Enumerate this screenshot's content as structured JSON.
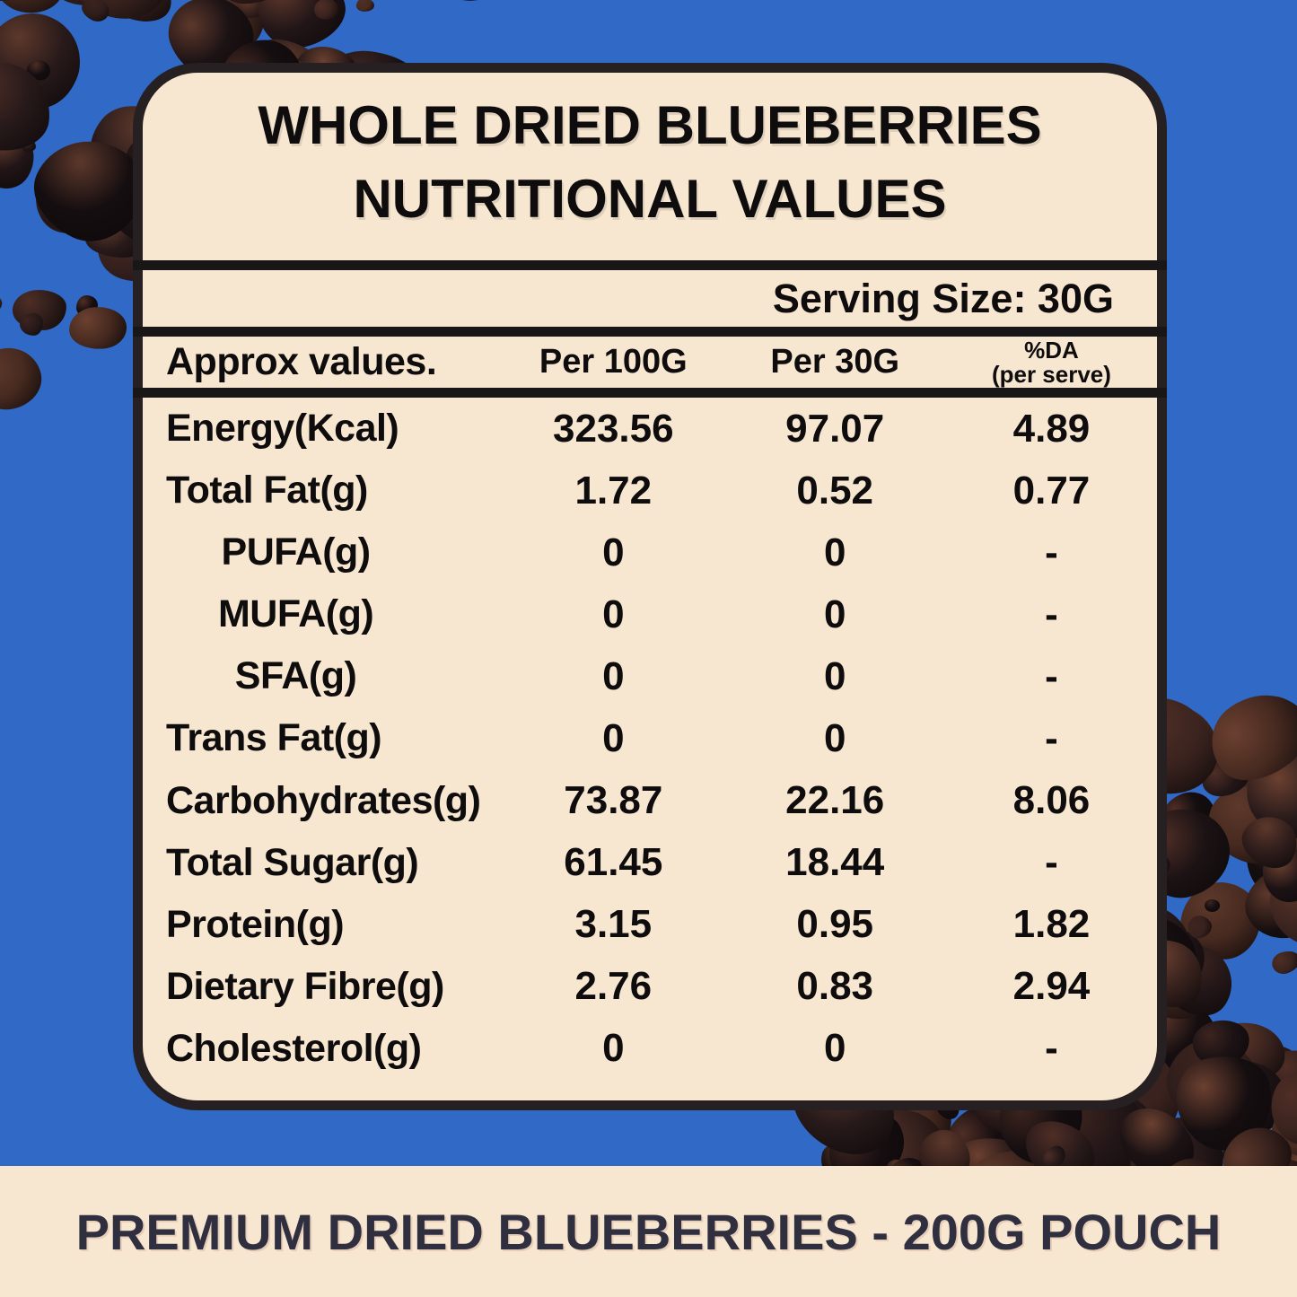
{
  "header": {
    "title_line1": "WHOLE DRIED BLUEBERRIES",
    "title_line2": "NUTRITIONAL VALUES",
    "serving_size": "Serving Size: 30G"
  },
  "table": {
    "col_label": "Approx values.",
    "col_per100": "Per 100G",
    "col_per30": "Per 30G",
    "col_da_line1": "%DA",
    "col_da_line2": "(per serve)",
    "rows": [
      {
        "label": "Energy(Kcal)",
        "per100": "323.56",
        "per30": "97.07",
        "da": "4.89",
        "indent": false
      },
      {
        "label": "Total Fat(g)",
        "per100": "1.72",
        "per30": "0.52",
        "da": "0.77",
        "indent": false
      },
      {
        "label": "PUFA(g)",
        "per100": "0",
        "per30": "0",
        "da": "-",
        "indent": true
      },
      {
        "label": "MUFA(g)",
        "per100": "0",
        "per30": "0",
        "da": "-",
        "indent": true
      },
      {
        "label": "SFA(g)",
        "per100": "0",
        "per30": "0",
        "da": "-",
        "indent": true
      },
      {
        "label": "Trans Fat(g)",
        "per100": "0",
        "per30": "0",
        "da": "-",
        "indent": false
      },
      {
        "label": "Carbohydrates(g)",
        "per100": "73.87",
        "per30": "22.16",
        "da": "8.06",
        "indent": false
      },
      {
        "label": "Total Sugar(g)",
        "per100": "61.45",
        "per30": "18.44",
        "da": "-",
        "indent": false
      },
      {
        "label": "Protein(g)",
        "per100": "3.15",
        "per30": "0.95",
        "da": "1.82",
        "indent": false
      },
      {
        "label": "Dietary Fibre(g)",
        "per100": "2.76",
        "per30": "0.83",
        "da": "2.94",
        "indent": false
      },
      {
        "label": "Cholesterol(g)",
        "per100": "0",
        "per30": "0",
        "da": "-",
        "indent": false
      }
    ]
  },
  "footer": {
    "label": "PREMIUM DRIED BLUEBERRIES - 200G POUCH"
  },
  "colors": {
    "background_blue": "#3069c6",
    "panel_cream": "#f8e7d0",
    "panel_border": "#262022",
    "divider_black": "#191617",
    "text_black": "#0e0c0d",
    "footer_text_navy": "#2f2f40",
    "berry_palette": [
      "#150e10",
      "#1b1214",
      "#211517",
      "#281a1a",
      "#2f1d1b",
      "#3a231e",
      "#472a20"
    ],
    "berry_highlights": [
      "#4f2e26",
      "#5d382b",
      "#6b4030",
      "#3c241f"
    ]
  }
}
